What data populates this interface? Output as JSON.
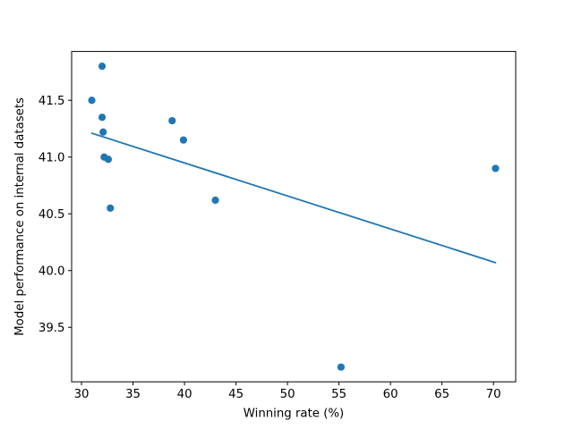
{
  "chart_data": {
    "type": "scatter",
    "title": "",
    "xlabel": "Winning rate (%)",
    "ylabel": "Model performance on internal datasets",
    "xlim": [
      29.04,
      72.16
    ],
    "ylim": [
      39.02,
      41.93
    ],
    "xticks": [
      30,
      35,
      40,
      45,
      50,
      55,
      60,
      65,
      70
    ],
    "yticks": [
      39.5,
      40.0,
      40.5,
      41.0,
      41.5
    ],
    "grid": false,
    "legend_position": "none",
    "points": [
      [
        31.0,
        41.5
      ],
      [
        32.0,
        41.8
      ],
      [
        32.0,
        41.35
      ],
      [
        32.1,
        41.22
      ],
      [
        32.2,
        41.0
      ],
      [
        32.6,
        40.98
      ],
      [
        32.8,
        40.55
      ],
      [
        38.8,
        41.32
      ],
      [
        39.9,
        41.15
      ],
      [
        43.0,
        40.62
      ],
      [
        55.2,
        39.15
      ],
      [
        70.2,
        40.9
      ]
    ],
    "trend_line": {
      "x": [
        31.0,
        70.2
      ],
      "y": [
        41.21,
        40.07
      ]
    },
    "marker_color": "#1f77b4",
    "line_color": "#1f77b4",
    "axis_color": "#000000",
    "background_color": "#ffffff"
  }
}
